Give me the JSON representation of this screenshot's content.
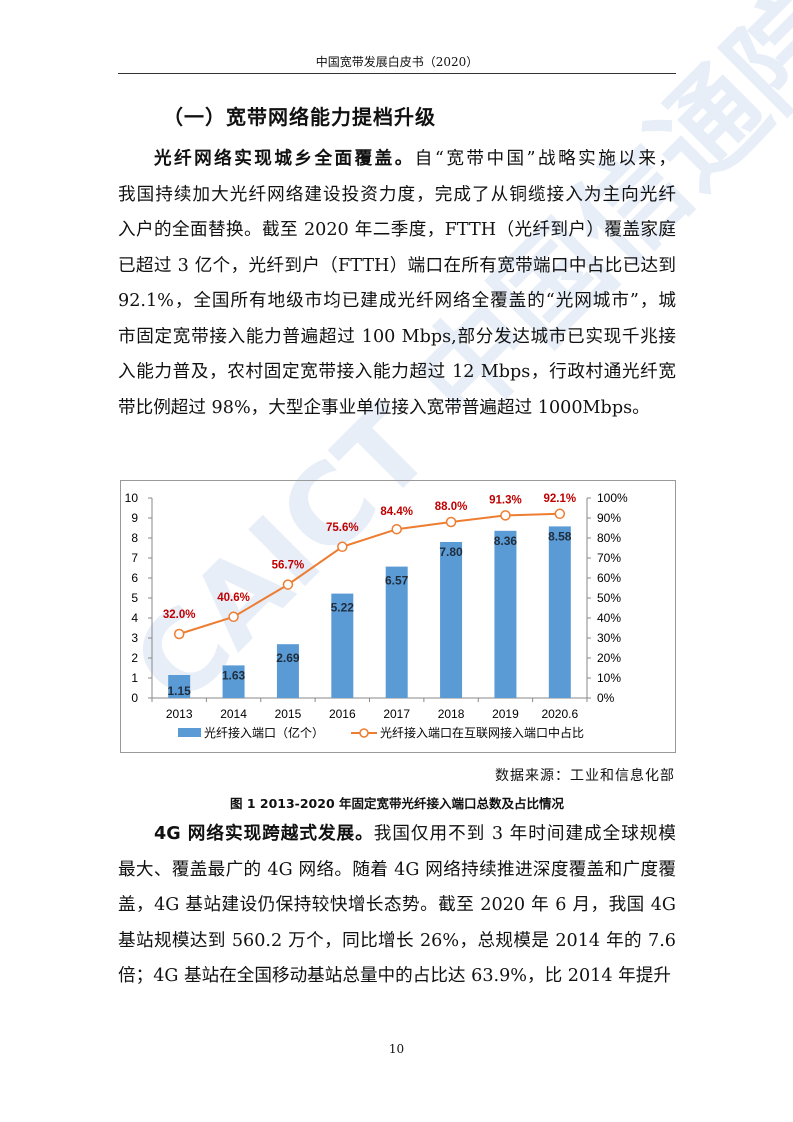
{
  "header": {
    "title": "中国宽带发展白皮书（2020）"
  },
  "section_title": "（一）宽带网络能力提档升级",
  "paragraph1": {
    "lead": "光纤网络实现城乡全面覆盖。",
    "lines": [
      "自“宽带中国”战略实施以来，",
      "我国持续加大光纤网络建设投资力度，完成了从铜缆接入为主向光纤",
      "入户的全面替换。截至 2020 年二季度，FTTH（光纤到户）覆盖家庭",
      "已超过 3 亿个，光纤到户（FTTH）端口在所有宽带端口中占比已达到",
      "92.1%，全国所有地级市均已建成光纤网络全覆盖的“光网城市”，城",
      "市固定宽带接入能力普遍超过 100 Mbps,部分发达城市已实现千兆接",
      "入能力普及，农村固定宽带接入能力超过 12 Mbps，行政村通光纤宽",
      "带比例超过 98%，大型企事业单位接入宽带普遍超过 1000Mbps。"
    ]
  },
  "chart_data": {
    "type": "bar+line",
    "categories": [
      "2013",
      "2014",
      "2015",
      "2016",
      "2017",
      "2018",
      "2019",
      "2020.6"
    ],
    "series": [
      {
        "name": "光纤接入端口（亿个）",
        "type": "bar",
        "axis": "left",
        "values": [
          1.15,
          1.63,
          2.69,
          5.22,
          6.57,
          7.8,
          8.36,
          8.58
        ],
        "labels": [
          "1.15",
          "1.63",
          "2.69",
          "5.22",
          "6.57",
          "7.80",
          "8.36",
          "8.58"
        ],
        "color": "#5b9bd5"
      },
      {
        "name": "光纤接入端口在互联网接入端口中占比",
        "type": "line",
        "axis": "right",
        "values": [
          32.0,
          40.6,
          56.7,
          75.6,
          84.4,
          88.0,
          91.3,
          92.1
        ],
        "labels": [
          "32.0%",
          "40.6%",
          "56.7%",
          "75.6%",
          "84.4%",
          "88.0%",
          "91.3%",
          "92.1%"
        ],
        "color": "#ed7d31",
        "label_color": "#c00000"
      }
    ],
    "left_axis": {
      "ylim": [
        0,
        10
      ],
      "ticks": [
        "0",
        "1",
        "2",
        "3",
        "4",
        "5",
        "6",
        "7",
        "8",
        "9",
        "10"
      ]
    },
    "right_axis": {
      "ylim": [
        0,
        100
      ],
      "ticks": [
        "0%",
        "10%",
        "20%",
        "30%",
        "40%",
        "50%",
        "60%",
        "70%",
        "80%",
        "90%",
        "100%"
      ]
    },
    "legend": "bottom",
    "grid": false
  },
  "source": "数据来源：工业和信息化部",
  "caption": "图 1   2013-2020 年固定宽带光纤接入端口总数及占比情况",
  "paragraph2": {
    "lead": "4G 网络实现跨越式发展。",
    "lines": [
      "我国仅用不到 3 年时间建成全球规模",
      "最大、覆盖最广的 4G 网络。随着 4G 网络持续推进深度覆盖和广度覆",
      "盖，4G 基站建设仍保持较快增长态势。截至 2020 年 6 月，我国 4G",
      "基站规模达到 560.2 万个，同比增长 26%，总规模是 2014 年的 7.6",
      "倍；4G 基站在全国移动基站总量中的占比达 63.9%，比 2014 年提升"
    ]
  },
  "page_number": "10",
  "watermark": "CAICT 中国信通院"
}
